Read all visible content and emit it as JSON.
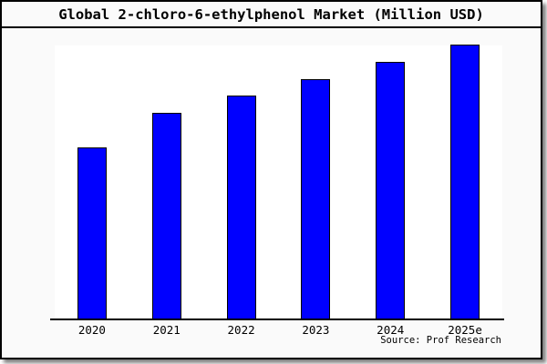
{
  "window": {
    "title": "Global 2-chloro-6-ethylphenol Market (Million USD)"
  },
  "chart_data": {
    "type": "bar",
    "title": "Global 2-chloro-6-ethylphenol Market (Million USD)",
    "categories": [
      "2020",
      "2021",
      "2022",
      "2023",
      "2024",
      "2025e"
    ],
    "values": [
      200,
      240,
      260,
      280,
      300,
      320
    ],
    "xlabel": "",
    "ylabel": "",
    "ylim": [
      0,
      320
    ],
    "grid": false,
    "legend": false,
    "y_axis_labels_visible": false,
    "bar_color": "#0000ff",
    "bar_border_color": "#000000"
  },
  "source": {
    "label": "Source: Prof Research"
  },
  "colors": {
    "canvas_background": "#fafafa",
    "plot_background": "#ffffff",
    "frame_border": "#000000",
    "shadow": "#808080",
    "text": "#000000"
  }
}
